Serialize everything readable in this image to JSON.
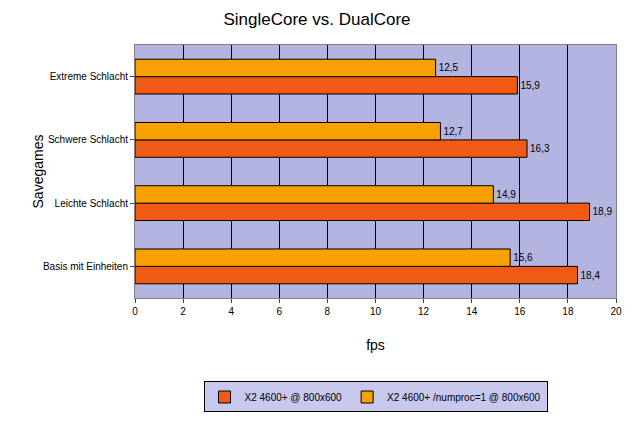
{
  "chart_data": {
    "type": "bar",
    "orientation": "horizontal",
    "title": "SingleCore vs. DualCore",
    "x_label": "fps",
    "y_label": "Savegames",
    "categories": [
      "Basis mit Einheiten",
      "Leichte Schlacht",
      "Schwere Schlacht",
      "Extreme Schlacht"
    ],
    "series": [
      {
        "name": "X2 4600+ @ 800x600",
        "color": "#f05a14",
        "values": [
          18.4,
          18.9,
          16.3,
          15.9
        ],
        "value_labels": [
          "18,4",
          "18,9",
          "16,3",
          "15,9"
        ]
      },
      {
        "name": "X2 4600+ /numproc=1 @ 800x600",
        "color": "#f7a000",
        "values": [
          15.6,
          14.9,
          12.7,
          12.5
        ],
        "value_labels": [
          "15,6",
          "14,9",
          "12,7",
          "12,5"
        ]
      }
    ],
    "xlim": [
      0,
      20
    ],
    "xticks": [
      0,
      2,
      4,
      6,
      8,
      10,
      12,
      14,
      16,
      18,
      20
    ],
    "grid": true,
    "data_labels": true,
    "legend": "bottom"
  }
}
